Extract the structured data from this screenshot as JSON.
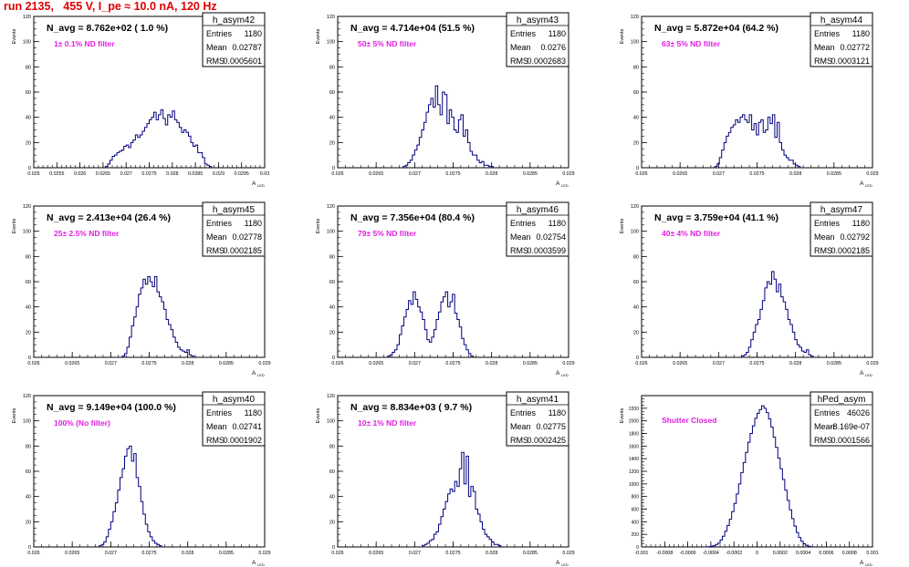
{
  "page_title": "run 2135,   455 V, I_pe ≈ 10.0 nA, 120 Hz",
  "colors": {
    "title": "#e00000",
    "hist_line": "#00007f",
    "annotation": "#e020e0",
    "text": "#000000"
  },
  "chart_data": [
    {
      "type": "bar",
      "name": "h_asym42",
      "header": "N_avg = 8.762e+02 ( 1.0 %)",
      "annotation": "1± 0.1% ND filter",
      "stats": [
        [
          "Entries",
          "1180"
        ],
        [
          "Mean",
          "0.02787"
        ],
        [
          "RMS",
          "0.0005601"
        ]
      ],
      "xlabel": "A",
      "xlabel_sub": "LED",
      "ylabel": "Events",
      "xlim": [
        0.025,
        0.03
      ],
      "ylim": [
        0,
        120
      ],
      "xticks": [
        0.025,
        0.0255,
        0.026,
        0.0265,
        0.027,
        0.0275,
        0.028,
        0.0285,
        0.029,
        0.0295,
        0.03
      ],
      "xtick_labels": [
        "0.025",
        "0.0255",
        "0.026",
        "0.0265",
        "0.027",
        "0.0275",
        "0.028",
        "0.0285",
        "0.029",
        "0.0295",
        "0.03"
      ],
      "yticks": [
        0,
        20,
        40,
        60,
        80,
        100,
        120
      ],
      "ytick_labels": [
        "0",
        "20",
        "40",
        "60",
        "80",
        "100",
        "120"
      ],
      "bin_start": 0.02655,
      "bin_width": 5e-05,
      "values": [
        1,
        3,
        6,
        9,
        10,
        12,
        13,
        14,
        17,
        18,
        16,
        20,
        22,
        26,
        24,
        26,
        29,
        32,
        35,
        38,
        40,
        44,
        38,
        42,
        46,
        39,
        34,
        42,
        40,
        45,
        38,
        36,
        32,
        28,
        30,
        28,
        25,
        20,
        17,
        18,
        12,
        12,
        8,
        3,
        2,
        1
      ]
    },
    {
      "type": "bar",
      "name": "h_asym43",
      "header": "N_avg = 4.714e+04 (51.5 %)",
      "annotation": "50± 5% ND filter",
      "stats": [
        [
          "Entries",
          "1180"
        ],
        [
          "Mean",
          "0.0276"
        ],
        [
          "RMS",
          "0.0002683"
        ]
      ],
      "xlabel": "A",
      "xlabel_sub": "LED",
      "ylabel": "Events",
      "xlim": [
        0.026,
        0.029
      ],
      "ylim": [
        0,
        120
      ],
      "xticks": [
        0.026,
        0.0265,
        0.027,
        0.0275,
        0.028,
        0.0285,
        0.029
      ],
      "xtick_labels": [
        "0.026",
        "0.0265",
        "0.027",
        "0.0275",
        "0.028",
        "0.0285",
        "0.029"
      ],
      "yticks": [
        0,
        20,
        40,
        60,
        80,
        100,
        120
      ],
      "ytick_labels": [
        "0",
        "20",
        "40",
        "60",
        "80",
        "100",
        "120"
      ],
      "bin_start": 0.02685,
      "bin_width": 3e-05,
      "values": [
        1,
        2,
        4,
        6,
        10,
        14,
        18,
        24,
        30,
        36,
        44,
        50,
        55,
        48,
        65,
        50,
        42,
        60,
        58,
        35,
        46,
        40,
        30,
        28,
        38,
        42,
        25,
        30,
        20,
        13,
        10,
        10,
        6,
        4,
        5,
        2,
        2,
        1,
        1
      ]
    },
    {
      "type": "bar",
      "name": "h_asym44",
      "header": "N_avg = 5.872e+04 (64.2 %)",
      "annotation": "63± 5% ND filter",
      "stats": [
        [
          "Entries",
          "1180"
        ],
        [
          "Mean",
          "0.02772"
        ],
        [
          "RMS",
          "0.0003121"
        ]
      ],
      "xlabel": "A",
      "xlabel_sub": "LED",
      "ylabel": "Events",
      "xlim": [
        0.026,
        0.029
      ],
      "ylim": [
        0,
        120
      ],
      "xticks": [
        0.026,
        0.0265,
        0.027,
        0.0275,
        0.028,
        0.0285,
        0.029
      ],
      "xtick_labels": [
        "0.026",
        "0.0265",
        "0.027",
        "0.0275",
        "0.028",
        "0.0285",
        "0.029"
      ],
      "yticks": [
        0,
        20,
        40,
        60,
        80,
        100,
        120
      ],
      "ytick_labels": [
        "0",
        "20",
        "40",
        "60",
        "80",
        "100",
        "120"
      ],
      "bin_start": 0.02695,
      "bin_width": 3e-05,
      "values": [
        1,
        3,
        8,
        14,
        20,
        25,
        28,
        32,
        34,
        38,
        36,
        40,
        42,
        38,
        36,
        42,
        30,
        35,
        26,
        36,
        38,
        28,
        30,
        40,
        35,
        42,
        24,
        36,
        20,
        14,
        10,
        8,
        6,
        6,
        3,
        2,
        1
      ]
    },
    {
      "type": "bar",
      "name": "h_asym45",
      "header": "N_avg = 2.413e+04 (26.4 %)",
      "annotation": "25± 2.5% ND filter",
      "stats": [
        [
          "Entries",
          "1180"
        ],
        [
          "Mean",
          "0.02778"
        ],
        [
          "RMS",
          "0.0002185"
        ]
      ],
      "xlabel": "A",
      "xlabel_sub": "LED",
      "ylabel": "Events",
      "xlim": [
        0.026,
        0.029
      ],
      "ylim": [
        0,
        120
      ],
      "xticks": [
        0.026,
        0.0265,
        0.027,
        0.0275,
        0.028,
        0.0285,
        0.029
      ],
      "xtick_labels": [
        "0.026",
        "0.0265",
        "0.027",
        "0.0275",
        "0.028",
        "0.0285",
        "0.029"
      ],
      "yticks": [
        0,
        20,
        40,
        60,
        80,
        100,
        120
      ],
      "ytick_labels": [
        "0",
        "20",
        "40",
        "60",
        "80",
        "100",
        "120"
      ],
      "bin_start": 0.02715,
      "bin_width": 3e-05,
      "values": [
        1,
        3,
        8,
        16,
        25,
        32,
        40,
        50,
        55,
        62,
        58,
        64,
        60,
        56,
        64,
        52,
        48,
        44,
        38,
        30,
        26,
        22,
        16,
        12,
        8,
        6,
        5,
        4,
        6,
        2,
        1
      ]
    },
    {
      "type": "bar",
      "name": "h_asym46",
      "header": "N_avg = 7.356e+04 (80.4 %)",
      "annotation": "79± 5% ND filter",
      "stats": [
        [
          "Entries",
          "1180"
        ],
        [
          "Mean",
          "0.02754"
        ],
        [
          "RMS",
          "0.0003599"
        ]
      ],
      "xlabel": "A",
      "xlabel_sub": "LED",
      "ylabel": "Events",
      "xlim": [
        0.026,
        0.029
      ],
      "ylim": [
        0,
        120
      ],
      "xticks": [
        0.026,
        0.0265,
        0.027,
        0.0275,
        0.028,
        0.0285,
        0.029
      ],
      "xtick_labels": [
        "0.026",
        "0.0265",
        "0.027",
        "0.0275",
        "0.028",
        "0.0285",
        "0.029"
      ],
      "yticks": [
        0,
        20,
        40,
        60,
        80,
        100,
        120
      ],
      "ytick_labels": [
        "0",
        "20",
        "40",
        "60",
        "80",
        "100",
        "120"
      ],
      "bin_start": 0.02665,
      "bin_width": 3e-05,
      "values": [
        1,
        2,
        4,
        6,
        10,
        18,
        25,
        32,
        38,
        45,
        42,
        52,
        46,
        40,
        36,
        30,
        22,
        14,
        12,
        16,
        22,
        30,
        36,
        44,
        48,
        52,
        40,
        44,
        50,
        35,
        30,
        24,
        15,
        10,
        6,
        3,
        1
      ]
    },
    {
      "type": "bar",
      "name": "h_asym47",
      "header": "N_avg = 3.759e+04 (41.1 %)",
      "annotation": "40± 4% ND filter",
      "stats": [
        [
          "Entries",
          "1180"
        ],
        [
          "Mean",
          "0.02792"
        ],
        [
          "RMS",
          "0.0002185"
        ]
      ],
      "xlabel": "A",
      "xlabel_sub": "LED",
      "ylabel": "Events",
      "xlim": [
        0.026,
        0.029
      ],
      "ylim": [
        0,
        120
      ],
      "xticks": [
        0.026,
        0.0265,
        0.027,
        0.0275,
        0.028,
        0.0285,
        0.029
      ],
      "xtick_labels": [
        "0.026",
        "0.0265",
        "0.027",
        "0.0275",
        "0.028",
        "0.0285",
        "0.029"
      ],
      "yticks": [
        0,
        20,
        40,
        60,
        80,
        100,
        120
      ],
      "ytick_labels": [
        "0",
        "20",
        "40",
        "60",
        "80",
        "100",
        "120"
      ],
      "bin_start": 0.0273,
      "bin_width": 3e-05,
      "values": [
        1,
        2,
        4,
        8,
        14,
        20,
        26,
        30,
        38,
        45,
        55,
        60,
        58,
        68,
        62,
        52,
        58,
        48,
        44,
        38,
        30,
        26,
        20,
        14,
        10,
        8,
        5,
        4,
        6,
        2,
        1
      ]
    },
    {
      "type": "bar",
      "name": "h_asym40",
      "header": "N_avg = 9.149e+04 (100.0 %)",
      "annotation": "100% (No filter)",
      "stats": [
        [
          "Entries",
          "1180"
        ],
        [
          "Mean",
          "0.02741"
        ],
        [
          "RMS",
          "0.0001902"
        ]
      ],
      "xlabel": "A",
      "xlabel_sub": "LED",
      "ylabel": "Events",
      "xlim": [
        0.026,
        0.029
      ],
      "ylim": [
        0,
        120
      ],
      "xticks": [
        0.026,
        0.0265,
        0.027,
        0.0275,
        0.028,
        0.0285,
        0.029
      ],
      "xtick_labels": [
        "0.026",
        "0.0265",
        "0.027",
        "0.0275",
        "0.028",
        "0.0285",
        "0.029"
      ],
      "yticks": [
        0,
        20,
        40,
        60,
        80,
        100,
        120
      ],
      "ytick_labels": [
        "0",
        "20",
        "40",
        "60",
        "80",
        "100",
        "120"
      ],
      "bin_start": 0.02685,
      "bin_width": 3e-05,
      "values": [
        1,
        2,
        4,
        8,
        14,
        20,
        28,
        35,
        45,
        55,
        62,
        72,
        78,
        80,
        68,
        74,
        55,
        48,
        36,
        26,
        18,
        12,
        8,
        5,
        3,
        2,
        1
      ]
    },
    {
      "type": "bar",
      "name": "h_asym41",
      "header": "N_avg = 8.834e+03 ( 9.7 %)",
      "annotation": "10± 1% ND filter",
      "stats": [
        [
          "Entries",
          "1180"
        ],
        [
          "Mean",
          "0.02775"
        ],
        [
          "RMS",
          "0.0002425"
        ]
      ],
      "xlabel": "A",
      "xlabel_sub": "LED",
      "ylabel": "Events",
      "xlim": [
        0.026,
        0.029
      ],
      "ylim": [
        0,
        120
      ],
      "xticks": [
        0.026,
        0.0265,
        0.027,
        0.0275,
        0.028,
        0.0285,
        0.029
      ],
      "xtick_labels": [
        "0.026",
        "0.0265",
        "0.027",
        "0.0275",
        "0.028",
        "0.0285",
        "0.029"
      ],
      "yticks": [
        0,
        20,
        40,
        60,
        80,
        100,
        120
      ],
      "ytick_labels": [
        "0",
        "20",
        "40",
        "60",
        "80",
        "100",
        "120"
      ],
      "bin_start": 0.0271,
      "bin_width": 3e-05,
      "values": [
        1,
        2,
        3,
        5,
        6,
        10,
        12,
        18,
        24,
        30,
        36,
        42,
        46,
        44,
        52,
        48,
        62,
        75,
        50,
        72,
        40,
        48,
        44,
        30,
        26,
        20,
        14,
        10,
        8,
        6,
        4,
        2,
        2,
        1
      ]
    },
    {
      "type": "bar",
      "name": "hPed_asym",
      "header": "",
      "annotation": "Shutter Closed",
      "stats": [
        [
          "Entries",
          "46026"
        ],
        [
          "Mean",
          "-8.169e-07"
        ],
        [
          "RMS",
          "0.0001566"
        ]
      ],
      "xlabel": "A",
      "xlabel_sub": "LED",
      "ylabel": "Events",
      "xlim": [
        -0.001,
        0.001
      ],
      "ylim": [
        0,
        2400
      ],
      "xticks": [
        -0.001,
        -0.0008,
        -0.0006,
        -0.0004,
        -0.0002,
        0,
        0.0002,
        0.0004,
        0.0006,
        0.0008,
        0.001
      ],
      "xtick_labels": [
        "-0.001",
        "-0.0008",
        "-0.0006",
        "-0.0004",
        "-0.0002",
        "0",
        "0.0002",
        "0.0004",
        "0.0006",
        "0.0008",
        "0.001"
      ],
      "yticks": [
        0,
        200,
        400,
        600,
        800,
        1000,
        1200,
        1400,
        1600,
        1800,
        2000,
        2200
      ],
      "ytick_labels": [
        "0",
        "200",
        "400",
        "600",
        "800",
        "1000",
        "1200",
        "1400",
        "1600",
        "1800",
        "2000",
        "2200"
      ],
      "bin_start": -0.00044,
      "bin_width": 2e-05,
      "values": [
        2,
        5,
        10,
        20,
        40,
        60,
        110,
        170,
        250,
        340,
        440,
        560,
        690,
        840,
        1000,
        1180,
        1340,
        1500,
        1660,
        1800,
        1920,
        2040,
        2120,
        2180,
        2240,
        2200,
        2130,
        2030,
        1900,
        1740,
        1580,
        1410,
        1240,
        1070,
        900,
        740,
        590,
        450,
        330,
        230,
        150,
        90,
        50,
        25,
        10,
        4
      ]
    }
  ]
}
